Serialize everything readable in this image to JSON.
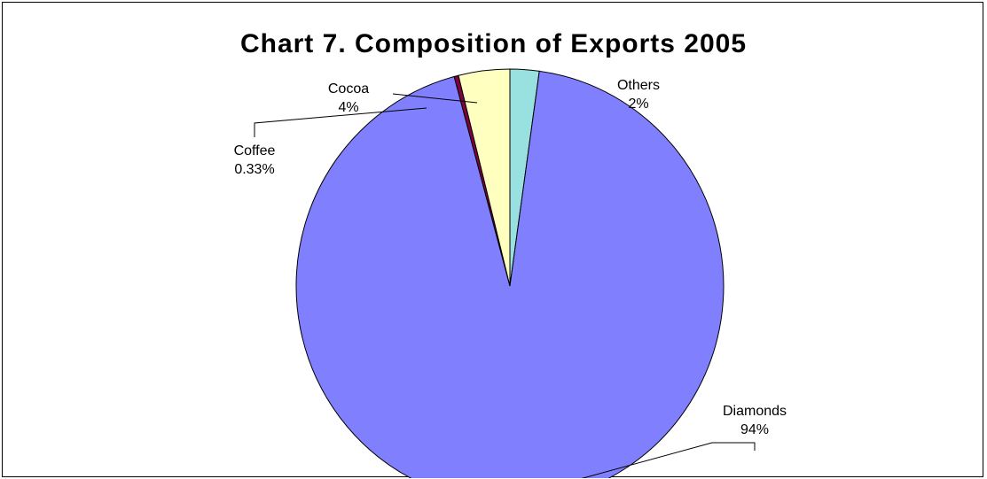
{
  "chart_data": {
    "type": "pie",
    "title": "Chart 7. Composition of Exports 2005",
    "slices": [
      {
        "name": "Others",
        "pct_label": "2%",
        "value": 2.2,
        "color": "#99e0e0"
      },
      {
        "name": "Diamonds",
        "pct_label": "94%",
        "value": 93.6,
        "color": "#8080ff"
      },
      {
        "name": "Coffee",
        "pct_label": "0.33%",
        "value": 0.33,
        "color": "#800040"
      },
      {
        "name": "Cocoa",
        "pct_label": "4%",
        "value": 3.87,
        "color": "#ffffc0"
      }
    ],
    "start": "12 o'clock",
    "direction": "clockwise"
  }
}
